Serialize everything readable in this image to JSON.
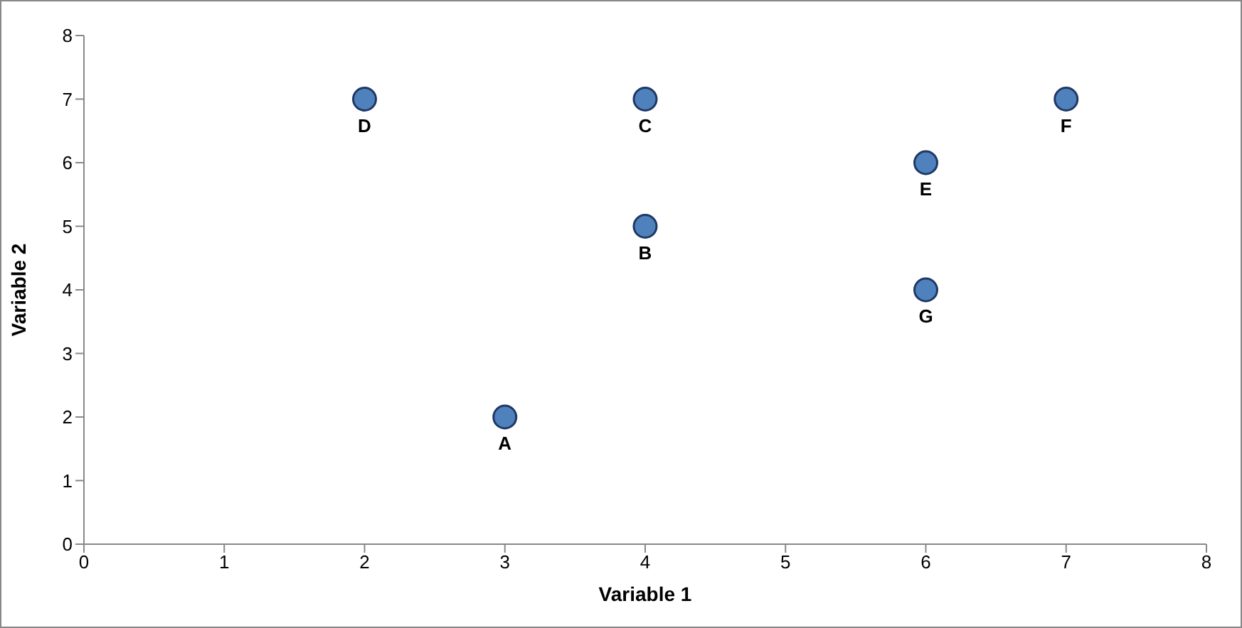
{
  "chart_data": {
    "type": "scatter",
    "xlabel": "Variable 1",
    "ylabel": "Variable 2",
    "x": [
      3,
      4,
      4,
      2,
      6,
      7,
      6
    ],
    "series": [
      {
        "color": "#4f81bd",
        "values": [
          2,
          5,
          7,
          7,
          6,
          7,
          4
        ]
      }
    ],
    "xlim": [
      0,
      8
    ],
    "xticks": [
      0,
      1,
      2,
      3,
      4,
      5,
      6,
      7,
      8
    ],
    "ylim": [
      0,
      8
    ],
    "yticks": [
      0,
      1,
      2,
      3,
      4,
      5,
      6,
      7,
      8
    ],
    "grid": false,
    "legend": false,
    "marker": "circle",
    "annotations": [
      {
        "text": "A",
        "x": 3,
        "y": 2
      },
      {
        "text": "B",
        "x": 4,
        "y": 5
      },
      {
        "text": "C",
        "x": 4,
        "y": 7
      },
      {
        "text": "D",
        "x": 2,
        "y": 7
      },
      {
        "text": "E",
        "x": 6,
        "y": 6
      },
      {
        "text": "F",
        "x": 7,
        "y": 7
      },
      {
        "text": "G",
        "x": 6,
        "y": 4
      }
    ]
  }
}
